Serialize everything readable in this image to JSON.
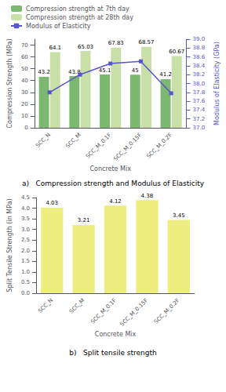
{
  "chart_data": [
    {
      "type": "bar",
      "title": "a)   Compression strength and Modulus of Elasticity",
      "xlabel": "Concrete Mix",
      "ylabel": "Compression Strength (MPa)",
      "y2label": "Modulus of Elasticity (GPa)",
      "categories": [
        "SCC_N",
        "SCC_M",
        "SCC_M_0.1F",
        "SCC_M_0.15F",
        "SCC_M_0.2F"
      ],
      "series": [
        {
          "name": "Compression strength at 7th day",
          "type": "bar",
          "color": "#7db870",
          "data_labels": true,
          "values": [
            43.2,
            43.8,
            45.1,
            45.0,
            41.2
          ]
        },
        {
          "name": "Compression strength at 28th day",
          "type": "bar",
          "color": "#c8dfa8",
          "data_labels": true,
          "values": [
            64.1,
            65.03,
            67.83,
            68.57,
            60.67
          ]
        },
        {
          "name": "Modulus of Elasticity",
          "type": "line",
          "axis": "y2",
          "color": "#5555cc",
          "marker": "square",
          "line_style": "solid",
          "values": [
            37.8,
            38.2,
            38.45,
            38.5,
            37.78
          ]
        }
      ],
      "ylim": [
        0,
        75
      ],
      "yticks": [
        0,
        10,
        20,
        30,
        40,
        50,
        60,
        70
      ],
      "y2lim": [
        37.0,
        39.0
      ],
      "y2ticks": [
        {
          "value": 37.0,
          "label": "37.0"
        },
        37.2,
        37.4,
        37.6,
        37.8,
        {
          "value": 38.0,
          "label": "38.0"
        },
        38.2,
        38.4,
        38.6,
        38.8,
        {
          "value": 39.0,
          "label": "39.0"
        }
      ],
      "legend": "upper left",
      "grid": false
    },
    {
      "type": "bar",
      "title": "b)   Split tensile strength",
      "xlabel": "Concrete Mix",
      "ylabel": "Split Tensile Strength (in MPa)",
      "categories": [
        "SCC_N",
        "SCC_M",
        "SCC_M_0.1F",
        "SCC_M_0.15F",
        "SCC_M_0.2F"
      ],
      "values": [
        4.03,
        3.21,
        4.12,
        4.38,
        3.45
      ],
      "color": "#eeee80",
      "data_labels": true,
      "ylim": [
        0.0,
        4.5
      ],
      "yticks": [
        {
          "value": 0.0,
          "label": "0.0"
        },
        0.5,
        {
          "value": 1.0,
          "label": "1.0"
        },
        1.5,
        {
          "value": 2.0,
          "label": "2.0"
        },
        2.5,
        {
          "value": 3.0,
          "label": "3.0"
        },
        3.5,
        {
          "value": 4.0,
          "label": "4.0"
        },
        4.5
      ],
      "grid": false
    }
  ]
}
